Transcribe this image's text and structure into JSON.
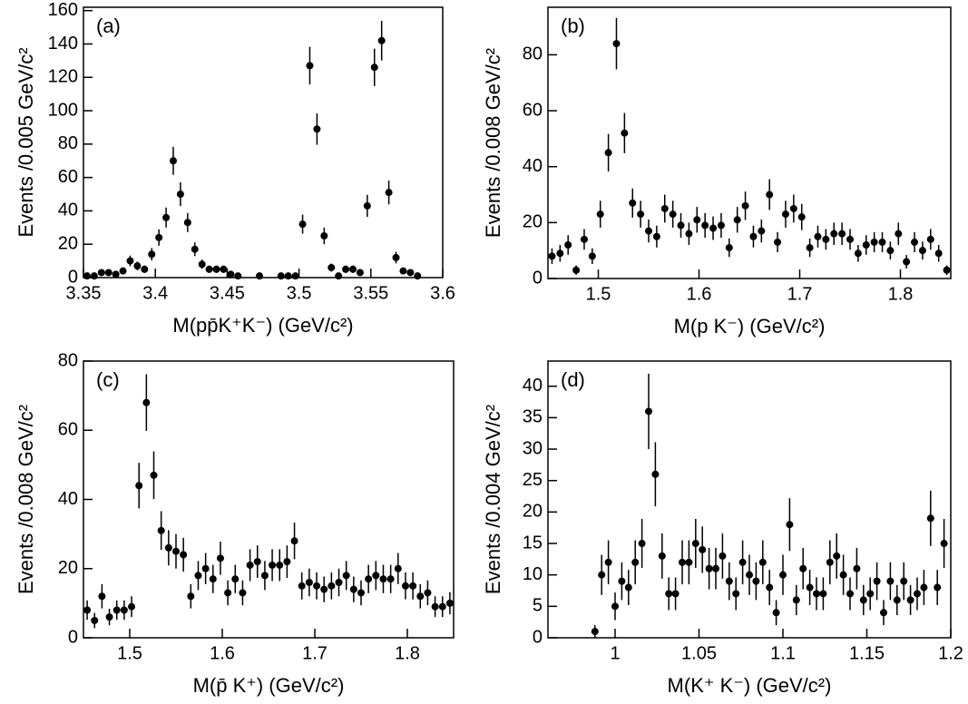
{
  "chart_data": [
    {
      "type": "scatter",
      "annotation": "(a)",
      "xlabel": "M(pp̄K⁺K⁻) (GeV/c²)",
      "ylabel": "Events /0.005 GeV/c²",
      "xlim": [
        3.35,
        3.6
      ],
      "xticks": [
        3.35,
        3.4,
        3.45,
        3.5,
        3.55,
        3.6
      ],
      "ylim": [
        0,
        162
      ],
      "yticks": [
        0,
        20,
        40,
        60,
        80,
        100,
        120,
        140,
        160
      ],
      "color": "#000000",
      "x": [
        3.3525,
        3.3575,
        3.3625,
        3.3675,
        3.3725,
        3.3775,
        3.3825,
        3.3875,
        3.3925,
        3.3975,
        3.4025,
        3.4075,
        3.4125,
        3.4175,
        3.4225,
        3.4275,
        3.4325,
        3.4375,
        3.4425,
        3.4475,
        3.4525,
        3.4575,
        3.4725,
        3.4875,
        3.4925,
        3.4975,
        3.5025,
        3.5075,
        3.5125,
        3.5175,
        3.5225,
        3.5275,
        3.5325,
        3.5375,
        3.5425,
        3.5475,
        3.5525,
        3.5575,
        3.5625,
        3.5675,
        3.5725,
        3.5775,
        3.5825
      ],
      "values": [
        1,
        1,
        3,
        3,
        2,
        4,
        10,
        7,
        5,
        14,
        24,
        36,
        70,
        50,
        33,
        17,
        8,
        5,
        5,
        5,
        2,
        1,
        1,
        1,
        1,
        1,
        32,
        127,
        89,
        25,
        6,
        1,
        5,
        5,
        3,
        43,
        126,
        142,
        51,
        12,
        4,
        3,
        1
      ],
      "errors": [
        1,
        1,
        1.7,
        1.7,
        1.4,
        2,
        3.2,
        2.6,
        2.2,
        3.7,
        4.9,
        6,
        8.4,
        7.1,
        5.7,
        4.1,
        2.8,
        2.2,
        2.2,
        2.2,
        1.4,
        1,
        1,
        1,
        1,
        1,
        5.7,
        11.3,
        9.4,
        5,
        2.4,
        1,
        2.2,
        2.2,
        1.7,
        6.6,
        11.2,
        11.9,
        7.1,
        3.5,
        2,
        1.7,
        1
      ]
    },
    {
      "type": "scatter",
      "annotation": "(b)",
      "xlabel": "M(p K⁻) (GeV/c²)",
      "ylabel": "Events /0.008 GeV/c²",
      "xlim": [
        1.45,
        1.85
      ],
      "xticks": [
        1.5,
        1.6,
        1.7,
        1.8
      ],
      "ylim": [
        0,
        97
      ],
      "yticks": [
        0,
        20,
        40,
        60,
        80
      ],
      "color": "#000000",
      "x": [
        1.454,
        1.462,
        1.47,
        1.478,
        1.486,
        1.494,
        1.502,
        1.51,
        1.518,
        1.526,
        1.534,
        1.542,
        1.55,
        1.558,
        1.566,
        1.574,
        1.582,
        1.59,
        1.598,
        1.606,
        1.614,
        1.622,
        1.63,
        1.638,
        1.646,
        1.654,
        1.662,
        1.67,
        1.678,
        1.686,
        1.694,
        1.702,
        1.71,
        1.718,
        1.726,
        1.734,
        1.742,
        1.75,
        1.758,
        1.766,
        1.774,
        1.782,
        1.79,
        1.798,
        1.806,
        1.814,
        1.822,
        1.83,
        1.838,
        1.846
      ],
      "values": [
        8,
        9,
        12,
        3,
        14,
        8,
        23,
        45,
        84,
        52,
        27,
        23,
        17,
        15,
        25,
        23,
        19,
        16,
        21,
        19,
        18,
        19,
        11,
        21,
        26,
        15,
        17,
        30,
        13,
        23,
        25,
        22,
        11,
        15,
        14,
        16,
        16,
        14,
        9,
        12,
        13,
        13,
        10,
        16,
        6,
        13,
        10,
        14,
        9,
        3
      ],
      "errors": [
        2.8,
        3,
        3.5,
        1.7,
        3.7,
        2.8,
        4.8,
        6.7,
        9.2,
        7.2,
        5.2,
        4.8,
        4.1,
        3.9,
        5,
        4.8,
        4.4,
        4,
        4.6,
        4.4,
        4.2,
        4.4,
        3.3,
        4.6,
        5.1,
        3.9,
        4.1,
        5.5,
        3.6,
        4.8,
        5,
        4.7,
        3.3,
        3.9,
        3.7,
        4,
        4,
        3.7,
        3,
        3.5,
        3.6,
        3.6,
        3.2,
        4,
        2.4,
        3.6,
        3.2,
        3.7,
        3,
        1.7
      ]
    },
    {
      "type": "scatter",
      "annotation": "(c)",
      "xlabel": "M(p̄ K⁺) (GeV/c²)",
      "ylabel": "Events /0.008 GeV/c²",
      "xlim": [
        1.45,
        1.85
      ],
      "xticks": [
        1.5,
        1.6,
        1.7,
        1.8
      ],
      "ylim": [
        0,
        80
      ],
      "yticks": [
        0,
        20,
        40,
        60,
        80
      ],
      "color": "#000000",
      "x": [
        1.454,
        1.462,
        1.47,
        1.478,
        1.486,
        1.494,
        1.502,
        1.51,
        1.518,
        1.526,
        1.534,
        1.542,
        1.55,
        1.558,
        1.566,
        1.574,
        1.582,
        1.59,
        1.598,
        1.606,
        1.614,
        1.622,
        1.63,
        1.638,
        1.646,
        1.654,
        1.662,
        1.67,
        1.678,
        1.686,
        1.694,
        1.702,
        1.71,
        1.718,
        1.726,
        1.734,
        1.742,
        1.75,
        1.758,
        1.766,
        1.774,
        1.782,
        1.79,
        1.798,
        1.806,
        1.814,
        1.822,
        1.83,
        1.838,
        1.846
      ],
      "values": [
        8,
        5,
        12,
        6,
        8,
        8,
        9,
        44,
        68,
        47,
        31,
        26,
        25,
        24,
        12,
        18,
        20,
        17,
        23,
        13,
        17,
        13,
        21,
        22,
        18,
        21,
        21,
        22,
        28,
        15,
        16,
        15,
        14,
        15,
        16,
        18,
        14,
        13,
        17,
        18,
        17,
        17,
        20,
        15,
        15,
        12,
        13,
        9,
        9,
        10
      ],
      "errors": [
        2.8,
        2.2,
        3.5,
        2.4,
        2.8,
        2.8,
        3,
        6.6,
        8.2,
        6.9,
        5.6,
        5.1,
        5,
        4.9,
        3.5,
        4.2,
        4.5,
        4.1,
        4.8,
        3.6,
        4.1,
        3.6,
        4.6,
        4.7,
        4.2,
        4.6,
        4.6,
        4.7,
        5.3,
        3.9,
        4,
        3.9,
        3.7,
        3.9,
        4,
        4.2,
        3.7,
        3.6,
        4.1,
        4.2,
        4.1,
        4.1,
        4.5,
        3.9,
        3.9,
        3.5,
        3.6,
        3,
        3,
        3.2
      ]
    },
    {
      "type": "scatter",
      "annotation": "(d)",
      "xlabel": "M(K⁺ K⁻) (GeV/c²)",
      "ylabel": "Events /0.004 GeV/c²",
      "xlim": [
        0.96,
        1.2
      ],
      "xticks": [
        1,
        1.05,
        1.1,
        1.15,
        1.2
      ],
      "ylim": [
        0,
        44
      ],
      "yticks": [
        0,
        5,
        10,
        15,
        20,
        25,
        30,
        35,
        40
      ],
      "color": "#000000",
      "x": [
        0.988,
        0.992,
        0.996,
        1,
        1.004,
        1.008,
        1.012,
        1.016,
        1.02,
        1.024,
        1.028,
        1.032,
        1.036,
        1.04,
        1.044,
        1.048,
        1.052,
        1.056,
        1.06,
        1.064,
        1.068,
        1.072,
        1.076,
        1.08,
        1.084,
        1.088,
        1.092,
        1.096,
        1.1,
        1.104,
        1.108,
        1.112,
        1.116,
        1.12,
        1.124,
        1.128,
        1.132,
        1.136,
        1.14,
        1.144,
        1.148,
        1.152,
        1.156,
        1.16,
        1.164,
        1.168,
        1.172,
        1.176,
        1.18,
        1.184,
        1.188,
        1.192,
        1.196
      ],
      "values": [
        1,
        10,
        12,
        5,
        9,
        8,
        12,
        15,
        36,
        26,
        13,
        7,
        7,
        12,
        12,
        15,
        14,
        11,
        11,
        13,
        9,
        7,
        12,
        10,
        9,
        12,
        8,
        4,
        10,
        18,
        6,
        11,
        8,
        7,
        7,
        12,
        13,
        10,
        7,
        11,
        6,
        7,
        9,
        4,
        9,
        6,
        9,
        6,
        7,
        8,
        19,
        8,
        15
      ],
      "errors": [
        1,
        3.2,
        3.5,
        2.2,
        3,
        2.8,
        3.5,
        3.9,
        6,
        5.1,
        3.6,
        2.6,
        2.6,
        3.5,
        3.5,
        3.9,
        3.7,
        3.3,
        3.3,
        3.6,
        3,
        2.6,
        3.5,
        3.2,
        3,
        3.5,
        2.8,
        2,
        3.2,
        4.2,
        2.4,
        3.3,
        2.8,
        2.6,
        2.6,
        3.5,
        3.6,
        3.2,
        2.6,
        3.3,
        2.4,
        2.6,
        3,
        2,
        3,
        2.4,
        3,
        2.4,
        2.6,
        2.8,
        4.4,
        2.8,
        3.9
      ]
    }
  ]
}
